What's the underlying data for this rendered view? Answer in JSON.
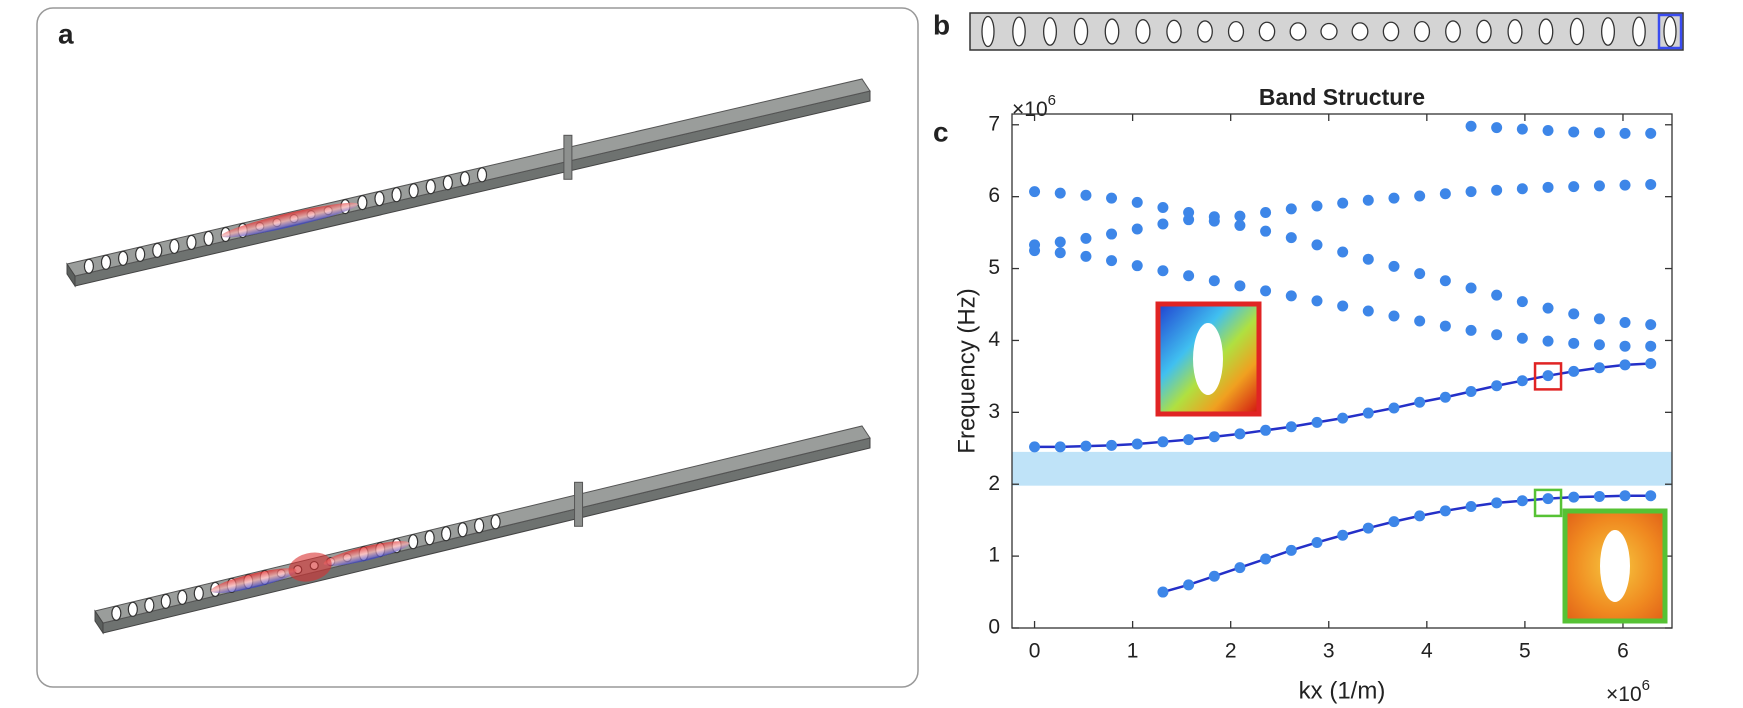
{
  "panel_labels": [
    "a",
    "b",
    "c"
  ],
  "chart_data": {
    "type": "scatter",
    "title": "Band Structure",
    "x_label": "kx (1/m)",
    "y_label": "Frequency (Hz)",
    "x_multiplier": {
      "base": "×10",
      "power": "6"
    },
    "y_multiplier": {
      "base": "×10",
      "power": "6"
    },
    "x": [
      0,
      0.262,
      0.524,
      0.785,
      1.047,
      1.309,
      1.571,
      1.833,
      2.094,
      2.356,
      2.618,
      2.88,
      3.142,
      3.403,
      3.665,
      3.927,
      4.189,
      4.451,
      4.712,
      4.974,
      5.236,
      5.498,
      5.76,
      6.021,
      6.283
    ],
    "series": [
      {
        "color": "#3d86e8",
        "line": true,
        "line_color": "#2430c8",
        "values": [
          null,
          null,
          null,
          null,
          null,
          0.5,
          0.6,
          0.72,
          0.84,
          0.96,
          1.08,
          1.19,
          1.29,
          1.39,
          1.48,
          1.56,
          1.63,
          1.69,
          1.74,
          1.77,
          1.8,
          1.82,
          1.83,
          1.84,
          1.84
        ]
      },
      {
        "color": "#3d86e8",
        "line": true,
        "line_color": "#2430c8",
        "values": [
          2.52,
          2.52,
          2.53,
          2.54,
          2.56,
          2.59,
          2.62,
          2.66,
          2.7,
          2.75,
          2.8,
          2.86,
          2.92,
          2.99,
          3.06,
          3.14,
          3.21,
          3.29,
          3.37,
          3.44,
          3.51,
          3.57,
          3.62,
          3.66,
          3.68
        ]
      },
      {
        "color": "#3d86e8",
        "line": false,
        "values": [
          5.25,
          5.22,
          5.17,
          5.11,
          5.04,
          4.97,
          4.9,
          4.83,
          4.76,
          4.69,
          4.62,
          4.55,
          4.48,
          4.41,
          4.34,
          4.27,
          4.2,
          4.14,
          4.08,
          4.03,
          3.99,
          3.96,
          3.94,
          3.92,
          3.92
        ]
      },
      {
        "color": "#3d86e8",
        "line": false,
        "values": [
          5.33,
          5.37,
          5.42,
          5.48,
          5.55,
          5.62,
          5.68,
          5.66,
          5.6,
          5.52,
          5.43,
          5.33,
          5.23,
          5.13,
          5.03,
          4.93,
          4.83,
          4.73,
          4.63,
          4.54,
          4.45,
          4.37,
          4.3,
          4.25,
          4.22
        ]
      },
      {
        "color": "#3d86e8",
        "line": false,
        "values": [
          6.07,
          6.05,
          6.02,
          5.98,
          5.92,
          5.85,
          5.78,
          5.72,
          5.73,
          5.78,
          5.83,
          5.87,
          5.91,
          5.95,
          5.98,
          6.01,
          6.04,
          6.07,
          6.09,
          6.11,
          6.13,
          6.14,
          6.15,
          6.16,
          6.17
        ]
      },
      {
        "color": "#3d86e8",
        "line": false,
        "values": [
          null,
          null,
          null,
          null,
          null,
          null,
          null,
          null,
          null,
          null,
          null,
          null,
          null,
          null,
          null,
          null,
          null,
          6.98,
          6.96,
          6.94,
          6.92,
          6.9,
          6.89,
          6.88,
          6.88
        ]
      }
    ],
    "shaded_region": {
      "y": [
        1.98,
        2.45
      ],
      "color": "#bfe3f8"
    },
    "highlights": [
      {
        "x": 5.236,
        "y": 3.5,
        "color": "#e02424"
      },
      {
        "x": 5.236,
        "y": 1.74,
        "color": "#56c234"
      }
    ],
    "xlim": [
      -0.23,
      6.5
    ],
    "ylim": [
      0,
      7.15
    ],
    "xticks": [
      0,
      1,
      2,
      3,
      4,
      5,
      6
    ],
    "yticks": [
      0,
      1,
      2,
      3,
      4,
      5,
      6,
      7
    ]
  }
}
